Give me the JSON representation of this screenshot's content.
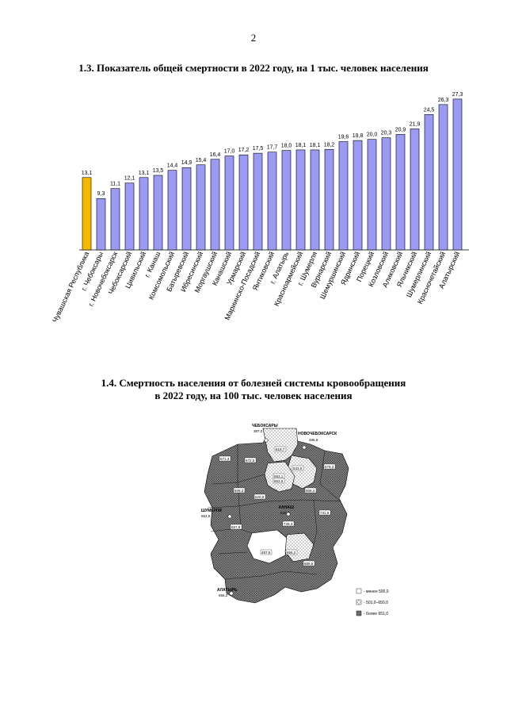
{
  "page": {
    "number": "2"
  },
  "section1": {
    "title": "1.3. Показатель общей смертности в 2022 году, на 1 тыс. человек населения"
  },
  "section2": {
    "title_line1": "1.4. Смертность населения от болезней системы кровообращения",
    "title_line2": "в 2022 году, на 100 тыс. человек населения"
  },
  "colors": {
    "republic": "#f5b800",
    "district": "#9b9bf2",
    "outline": "#000000"
  },
  "chart_data": {
    "type": "bar",
    "title": "1.3. Показатель общей смертности в 2022 году, на 1 тыс. человек населения",
    "xlabel": "",
    "ylabel": "",
    "ylim": [
      0,
      28
    ],
    "categories": [
      "Чувашская Республика",
      "г. Чебоксары",
      "г. Новочебоксарск",
      "Чебоксарский",
      "Цивильский",
      "г. Канаш",
      "Комсомольский",
      "Батыревский",
      "Ибресинский",
      "Моргаушский",
      "Канашский",
      "Урмарский",
      "Мариинско-Посадский",
      "Янтиковский",
      "г. Алатырь",
      "Красноармейский",
      "г. Шумерля",
      "Вурнарский",
      "Шемуршинский",
      "Ядринский",
      "Порецкий",
      "Козловский",
      "Аликовский",
      "Яльчикский",
      "Шумерлинский",
      "Красночетайский",
      "Алатырский"
    ],
    "values": [
      13.1,
      9.3,
      11.1,
      12.1,
      13.1,
      13.5,
      14.4,
      14.9,
      15.4,
      16.4,
      17.0,
      17.2,
      17.5,
      17.7,
      18.0,
      18.1,
      18.1,
      18.2,
      19.6,
      19.8,
      20.0,
      20.3,
      20.9,
      21.9,
      24.5,
      26.3,
      27.3
    ],
    "value_labels": [
      "13,1",
      "9,3",
      "11,1",
      "12,1",
      "13,1",
      "13,5",
      "14,4",
      "14,9",
      "15,4",
      "16,4",
      "17,0",
      "17,2",
      "17,5",
      "17,7",
      "18,0",
      "18,1",
      "18,1",
      "18,2",
      "19,6",
      "19,8",
      "20,0",
      "20,3",
      "20,9",
      "21,9",
      "24,5",
      "26,3",
      "27,3"
    ],
    "highlight_index": 0
  },
  "map": {
    "cities": [
      "ЧЕБОКСАРЫ",
      "НОВОЧЕБОКСАРСК",
      "КАНАШ",
      "ШУМЕРЛЯ",
      "АЛАТЫРЬ"
    ],
    "city_values": [
      "387,0",
      "486,8",
      "620,7",
      "654,5",
      "656,2"
    ],
    "district_values": [
      "618,7",
      "533,0",
      "553,1",
      "671,3",
      "672,5",
      "653,5",
      "731,9",
      "749,3",
      "657,9",
      "679,3",
      "666,4",
      "609,3",
      "620,8",
      "656,2",
      "487,5",
      "689,5"
    ],
    "legend": [
      "- менее 500,0",
      "- 501,0–650,0",
      "- более 651,0"
    ]
  }
}
